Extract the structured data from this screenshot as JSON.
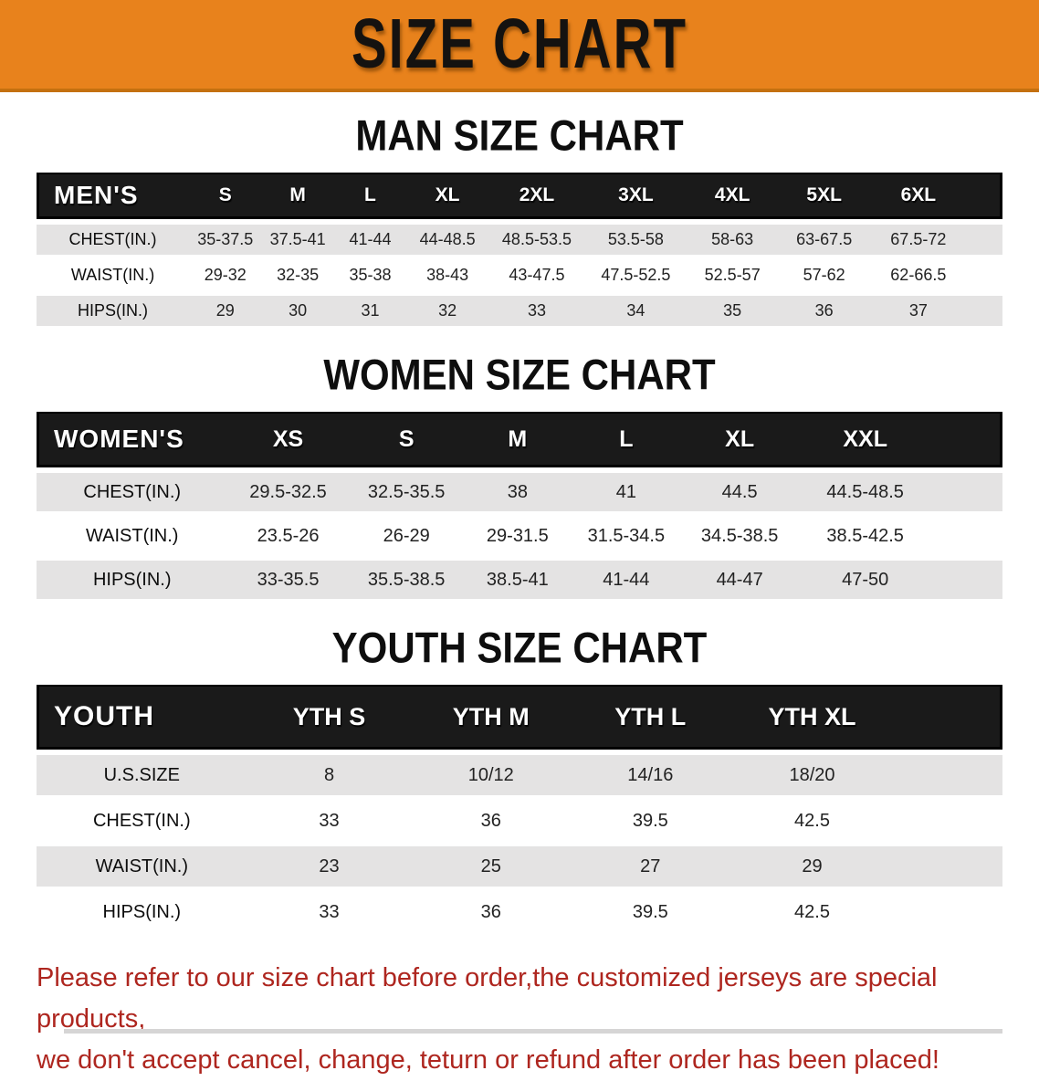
{
  "banner": {
    "title": "SIZE CHART"
  },
  "sections": [
    {
      "heading": "MAN SIZE CHART",
      "table": {
        "label": "MEN'S",
        "columns": [
          "S",
          "M",
          "L",
          "XL",
          "2XL",
          "3XL",
          "4XL",
          "5XL",
          "6XL"
        ],
        "rows": [
          {
            "label": "CHEST(IN.)",
            "values": [
              "35-37.5",
              "37.5-41",
              "41-44",
              "44-48.5",
              "48.5-53.5",
              "53.5-58",
              "58-63",
              "63-67.5",
              "67.5-72"
            ]
          },
          {
            "label": "WAIST(IN.)",
            "values": [
              "29-32",
              "32-35",
              "35-38",
              "38-43",
              "43-47.5",
              "47.5-52.5",
              "52.5-57",
              "57-62",
              "62-66.5"
            ]
          },
          {
            "label": "HIPS(IN.)",
            "values": [
              "29",
              "30",
              "31",
              "32",
              "33",
              "34",
              "35",
              "36",
              "37"
            ]
          }
        ]
      }
    },
    {
      "heading": "WOMEN SIZE CHART",
      "table": {
        "label": "WOMEN'S",
        "columns": [
          "XS",
          "S",
          "M",
          "L",
          "XL",
          "XXL"
        ],
        "rows": [
          {
            "label": "CHEST(IN.)",
            "values": [
              "29.5-32.5",
              "32.5-35.5",
              "38",
              "41",
              "44.5",
              "44.5-48.5"
            ]
          },
          {
            "label": "WAIST(IN.)",
            "values": [
              "23.5-26",
              "26-29",
              "29-31.5",
              "31.5-34.5",
              "34.5-38.5",
              "38.5-42.5"
            ]
          },
          {
            "label": "HIPS(IN.)",
            "values": [
              "33-35.5",
              "35.5-38.5",
              "38.5-41",
              "41-44",
              "44-47",
              "47-50"
            ]
          }
        ]
      }
    },
    {
      "heading": "YOUTH SIZE CHART",
      "table": {
        "label": "YOUTH",
        "columns": [
          "YTH S",
          "YTH M",
          "YTH L",
          "YTH XL"
        ],
        "rows": [
          {
            "label": "U.S.SIZE",
            "values": [
              "8",
              "10/12",
              "14/16",
              "18/20"
            ]
          },
          {
            "label": "CHEST(IN.)",
            "values": [
              "33",
              "36",
              "39.5",
              "42.5"
            ]
          },
          {
            "label": "WAIST(IN.)",
            "values": [
              "23",
              "25",
              "27",
              "29"
            ]
          },
          {
            "label": "HIPS(IN.)",
            "values": [
              "33",
              "36",
              "39.5",
              "42.5"
            ]
          }
        ]
      }
    }
  ],
  "footnote": {
    "line1": "Please refer to our size chart before order,the customized jerseys are special products,",
    "line2": "we don't accept cancel, change, teturn or refund after order has been placed!"
  },
  "colors": {
    "banner_bg": "#E8821C",
    "banner_border": "#C4700F",
    "header_bar": "#1A1A1A",
    "row_stripe": "#E4E3E3",
    "footnote_red": "#AE261F"
  }
}
